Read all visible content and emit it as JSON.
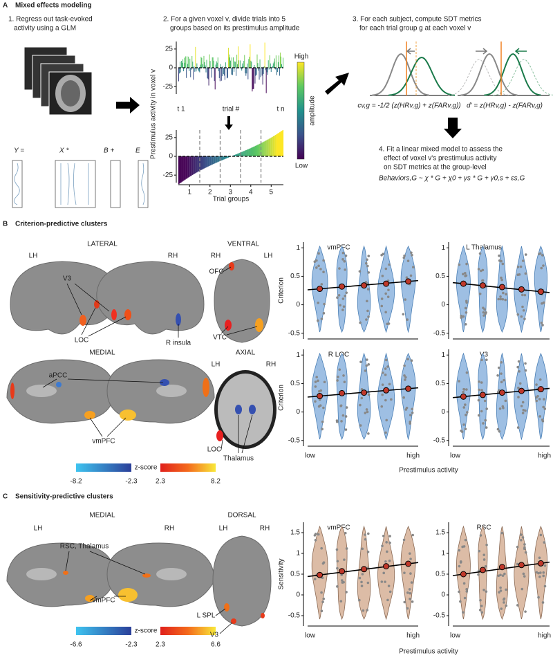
{
  "figure": {
    "panel_a": {
      "letter": "A",
      "title": "Mixed effects modeling",
      "step1": [
        "1. Regress out task-evoked",
        "activity using a GLM"
      ],
      "glm": [
        "Y =",
        "X *",
        "B +",
        "E"
      ],
      "step2": [
        "2. For a given voxel v, divide trials into 5",
        "groups based on its prestimulus amplitude"
      ],
      "y_label": "Prestimulus activity in voxel v",
      "top_ylim": [
        -35,
        35
      ],
      "top_yticks": [
        25,
        0,
        -25
      ],
      "trial_labels": [
        "t 1",
        "trial #",
        "t n"
      ],
      "bottom_ylim": [
        -35,
        35
      ],
      "bottom_yticks": [
        25,
        0,
        -25
      ],
      "group_xlim": [
        0.45,
        5.6
      ],
      "group_ticks": [
        1,
        2,
        3,
        4,
        5
      ],
      "x_label": "Trial groups",
      "colorbar": [
        "High",
        "amplitude",
        "Low"
      ],
      "step3": [
        "3. For each subject, compute SDT metrics",
        "for each trial group g at each voxel v"
      ],
      "formulas": [
        "cv,g = -1/2 (z(HRv,g) + z(FARv,g))",
        "d' = z(HRv,g) - z(FARv,g)"
      ],
      "step4": [
        "4. Fit a linear mixed model to assess the",
        "effect of voxel v's prestimulus activity",
        "on SDT metrics at the group-level"
      ],
      "model": "Behaviors,G ~ χ * G + χ0 + γs * G + γ0,s + εs,G"
    },
    "panel_b": {
      "letter": "B",
      "title": "Criterion-predictive clusters",
      "views": [
        "LATERAL",
        "VENTRAL",
        "MEDIAL",
        "AXIAL"
      ],
      "hemis": [
        "LH",
        "RH",
        "RH",
        "LH",
        "LH",
        "RH"
      ],
      "labels": [
        "V3",
        "LOC",
        "R insula",
        "OFC",
        "VTC",
        "aPCC",
        "vmPFC",
        "LOC",
        "Thalamus"
      ],
      "zticks": [
        -8.2,
        -2.3,
        2.3,
        8.2
      ],
      "z_label": "z-score",
      "x_label": "Prestimulus activity"
    },
    "panel_c": {
      "letter": "C",
      "title": "Sensitivity-predictive clusters",
      "views": [
        "MEDIAL",
        "DORSAL"
      ],
      "hemis": [
        "LH",
        "RH",
        "LH",
        "RH"
      ],
      "labels": [
        "RSC, Thalamus",
        "vmPFC",
        "L SPL",
        "V3"
      ],
      "zticks": [
        -6.6,
        -2.3,
        2.3,
        6.6
      ],
      "z_label": "z-score",
      "x_label": "Prestimulus activity"
    }
  },
  "chart_data": [
    {
      "type": "violin",
      "title": "vmPFC",
      "y_label": "Criterion",
      "values": [
        0.28,
        0.32,
        0.34,
        0.37,
        0.41
      ],
      "ylim": [
        -0.6,
        1.1
      ],
      "yticks": [
        1,
        0.5,
        0,
        -0.5
      ],
      "color": "#9ebfe3"
    },
    {
      "type": "violin",
      "title": "L Thalamus",
      "values": [
        0.37,
        0.34,
        0.31,
        0.27,
        0.23
      ],
      "ylim": [
        -0.6,
        1.1
      ],
      "yticks": [
        1,
        0.5,
        0,
        -0.5
      ],
      "color": "#9ebfe3"
    },
    {
      "type": "violin",
      "title": "R LOC",
      "y_label": "Criterion",
      "values": [
        0.28,
        0.33,
        0.34,
        0.38,
        0.41
      ],
      "ylim": [
        -0.6,
        1.1
      ],
      "yticks": [
        1,
        0.5,
        0,
        -0.5
      ],
      "color": "#9ebfe3",
      "x_labels": [
        "low",
        "high"
      ]
    },
    {
      "type": "violin",
      "title": "V3",
      "values": [
        0.27,
        0.3,
        0.34,
        0.37,
        0.4
      ],
      "ylim": [
        -0.6,
        1.1
      ],
      "yticks": [
        1,
        0.5,
        0,
        -0.5
      ],
      "color": "#9ebfe3",
      "x_labels": [
        "low",
        "high"
      ]
    },
    {
      "type": "violin",
      "title": "vmPFC",
      "y_label": "Sensitivity",
      "values": [
        0.48,
        0.57,
        0.62,
        0.69,
        0.75
      ],
      "ylim": [
        -0.75,
        1.75
      ],
      "yticks": [
        1.5,
        1,
        0.5,
        0,
        -0.5
      ],
      "color": "#dcbca6",
      "x_labels": [
        "low",
        "high"
      ]
    },
    {
      "type": "violin",
      "title": "RSC",
      "values": [
        0.5,
        0.6,
        0.67,
        0.72,
        0.76
      ],
      "ylim": [
        -0.75,
        1.75
      ],
      "yticks": [
        1.5,
        1,
        0.5,
        0,
        -0.5
      ],
      "color": "#dcbca6",
      "x_labels": [
        "low",
        "high"
      ]
    }
  ]
}
